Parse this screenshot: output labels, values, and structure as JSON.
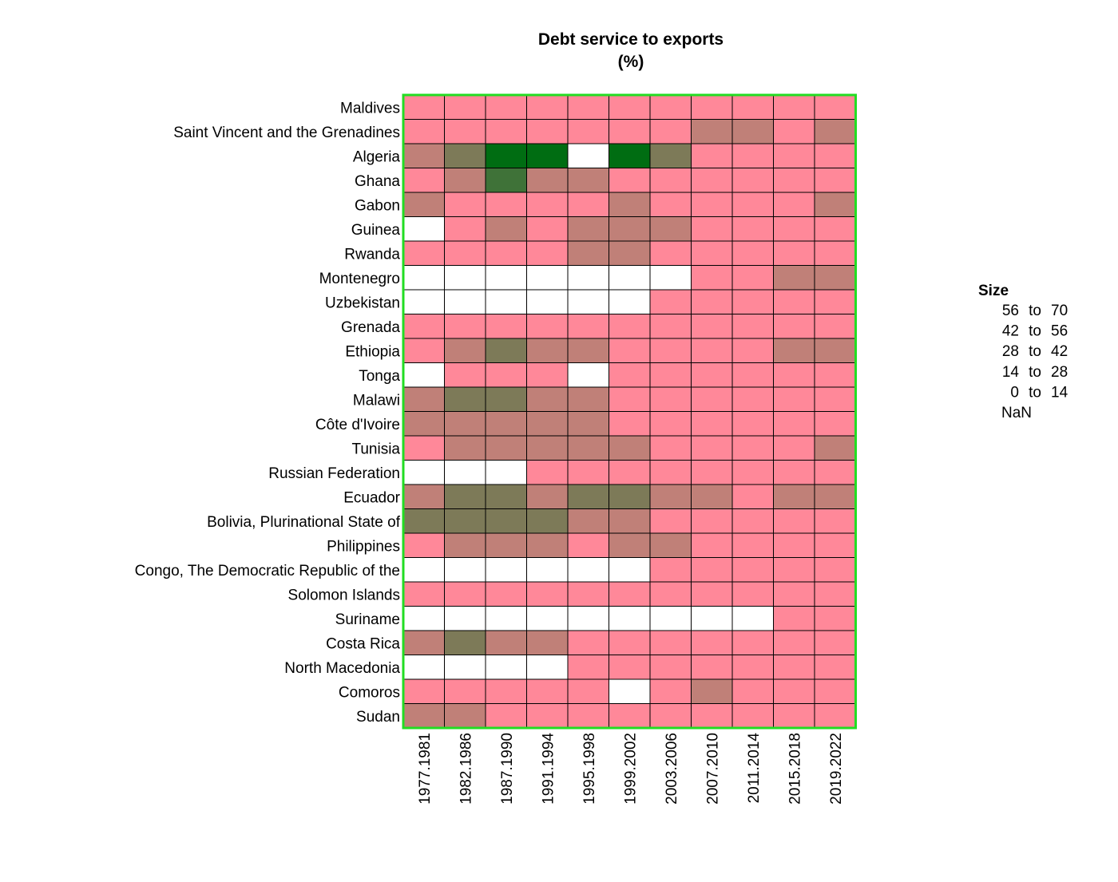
{
  "chart_data": {
    "type": "heatmap",
    "title": "Debt service to exports",
    "subtitle": "(%)",
    "columns": [
      "1977.1981",
      "1982.1986",
      "1987.1990",
      "1991.1994",
      "1995.1998",
      "1999.2002",
      "2003.2006",
      "2007.2010",
      "2011.2014",
      "2015.2018",
      "2019.2022"
    ],
    "rows": [
      "Maldives",
      "Saint Vincent and the Grenadines",
      "Algeria",
      "Ghana",
      "Gabon",
      "Guinea",
      "Rwanda",
      "Montenegro",
      "Uzbekistan",
      "Grenada",
      "Ethiopia",
      "Tonga",
      "Malawi",
      "Côte d'Ivoire",
      "Tunisia",
      "Russian Federation",
      "Ecuador",
      "Bolivia, Plurinational State of",
      "Philippines",
      "Congo, The Democratic Republic of the",
      "Solomon Islands",
      "Suriname",
      "Costa Rica",
      "North Macedonia",
      "Comoros",
      "Sudan"
    ],
    "bins": [
      "0 to 14",
      "14 to 28",
      "28 to 42",
      "42 to 56",
      "56 to 70",
      "NaN"
    ],
    "cells": [
      [
        "0 to 14",
        "0 to 14",
        "0 to 14",
        "0 to 14",
        "0 to 14",
        "0 to 14",
        "0 to 14",
        "0 to 14",
        "0 to 14",
        "0 to 14",
        "0 to 14"
      ],
      [
        "0 to 14",
        "0 to 14",
        "0 to 14",
        "0 to 14",
        "0 to 14",
        "0 to 14",
        "0 to 14",
        "14 to 28",
        "14 to 28",
        "0 to 14",
        "14 to 28"
      ],
      [
        "14 to 28",
        "28 to 42",
        "56 to 70",
        "56 to 70",
        "NaN",
        "56 to 70",
        "28 to 42",
        "0 to 14",
        "0 to 14",
        "0 to 14",
        "0 to 14"
      ],
      [
        "0 to 14",
        "14 to 28",
        "42 to 56",
        "14 to 28",
        "14 to 28",
        "0 to 14",
        "0 to 14",
        "0 to 14",
        "0 to 14",
        "0 to 14",
        "0 to 14"
      ],
      [
        "14 to 28",
        "0 to 14",
        "0 to 14",
        "0 to 14",
        "0 to 14",
        "14 to 28",
        "0 to 14",
        "0 to 14",
        "0 to 14",
        "0 to 14",
        "14 to 28"
      ],
      [
        "NaN",
        "0 to 14",
        "14 to 28",
        "0 to 14",
        "14 to 28",
        "14 to 28",
        "14 to 28",
        "0 to 14",
        "0 to 14",
        "0 to 14",
        "0 to 14"
      ],
      [
        "0 to 14",
        "0 to 14",
        "0 to 14",
        "0 to 14",
        "14 to 28",
        "14 to 28",
        "0 to 14",
        "0 to 14",
        "0 to 14",
        "0 to 14",
        "0 to 14"
      ],
      [
        "NaN",
        "NaN",
        "NaN",
        "NaN",
        "NaN",
        "NaN",
        "NaN",
        "0 to 14",
        "0 to 14",
        "14 to 28",
        "14 to 28"
      ],
      [
        "NaN",
        "NaN",
        "NaN",
        "NaN",
        "NaN",
        "NaN",
        "0 to 14",
        "0 to 14",
        "0 to 14",
        "0 to 14",
        "0 to 14"
      ],
      [
        "0 to 14",
        "0 to 14",
        "0 to 14",
        "0 to 14",
        "0 to 14",
        "0 to 14",
        "0 to 14",
        "0 to 14",
        "0 to 14",
        "0 to 14",
        "0 to 14"
      ],
      [
        "0 to 14",
        "14 to 28",
        "28 to 42",
        "14 to 28",
        "14 to 28",
        "0 to 14",
        "0 to 14",
        "0 to 14",
        "0 to 14",
        "14 to 28",
        "14 to 28"
      ],
      [
        "NaN",
        "0 to 14",
        "0 to 14",
        "0 to 14",
        "NaN",
        "0 to 14",
        "0 to 14",
        "0 to 14",
        "0 to 14",
        "0 to 14",
        "0 to 14"
      ],
      [
        "14 to 28",
        "28 to 42",
        "28 to 42",
        "14 to 28",
        "14 to 28",
        "0 to 14",
        "0 to 14",
        "0 to 14",
        "0 to 14",
        "0 to 14",
        "0 to 14"
      ],
      [
        "14 to 28",
        "14 to 28",
        "14 to 28",
        "14 to 28",
        "14 to 28",
        "0 to 14",
        "0 to 14",
        "0 to 14",
        "0 to 14",
        "0 to 14",
        "0 to 14"
      ],
      [
        "0 to 14",
        "14 to 28",
        "14 to 28",
        "14 to 28",
        "14 to 28",
        "14 to 28",
        "0 to 14",
        "0 to 14",
        "0 to 14",
        "0 to 14",
        "14 to 28"
      ],
      [
        "NaN",
        "NaN",
        "NaN",
        "0 to 14",
        "0 to 14",
        "0 to 14",
        "0 to 14",
        "0 to 14",
        "0 to 14",
        "0 to 14",
        "0 to 14"
      ],
      [
        "14 to 28",
        "28 to 42",
        "28 to 42",
        "14 to 28",
        "28 to 42",
        "28 to 42",
        "14 to 28",
        "14 to 28",
        "0 to 14",
        "14 to 28",
        "14 to 28"
      ],
      [
        "28 to 42",
        "28 to 42",
        "28 to 42",
        "28 to 42",
        "14 to 28",
        "14 to 28",
        "0 to 14",
        "0 to 14",
        "0 to 14",
        "0 to 14",
        "0 to 14"
      ],
      [
        "0 to 14",
        "14 to 28",
        "14 to 28",
        "14 to 28",
        "0 to 14",
        "14 to 28",
        "14 to 28",
        "0 to 14",
        "0 to 14",
        "0 to 14",
        "0 to 14"
      ],
      [
        "NaN",
        "NaN",
        "NaN",
        "NaN",
        "NaN",
        "NaN",
        "0 to 14",
        "0 to 14",
        "0 to 14",
        "0 to 14",
        "0 to 14"
      ],
      [
        "0 to 14",
        "0 to 14",
        "0 to 14",
        "0 to 14",
        "0 to 14",
        "0 to 14",
        "0 to 14",
        "0 to 14",
        "0 to 14",
        "0 to 14",
        "0 to 14"
      ],
      [
        "NaN",
        "NaN",
        "NaN",
        "NaN",
        "NaN",
        "NaN",
        "NaN",
        "NaN",
        "NaN",
        "0 to 14",
        "0 to 14"
      ],
      [
        "14 to 28",
        "28 to 42",
        "14 to 28",
        "14 to 28",
        "0 to 14",
        "0 to 14",
        "0 to 14",
        "0 to 14",
        "0 to 14",
        "0 to 14",
        "0 to 14"
      ],
      [
        "NaN",
        "NaN",
        "NaN",
        "NaN",
        "0 to 14",
        "0 to 14",
        "0 to 14",
        "0 to 14",
        "0 to 14",
        "0 to 14",
        "0 to 14"
      ],
      [
        "0 to 14",
        "0 to 14",
        "0 to 14",
        "0 to 14",
        "0 to 14",
        "NaN",
        "0 to 14",
        "14 to 28",
        "0 to 14",
        "0 to 14",
        "0 to 14"
      ],
      [
        "14 to 28",
        "14 to 28",
        "0 to 14",
        "0 to 14",
        "0 to 14",
        "0 to 14",
        "0 to 14",
        "0 to 14",
        "0 to 14",
        "0 to 14",
        "0 to 14"
      ]
    ],
    "colors": {
      "0 to 14": "#ff8899",
      "14 to 28": "#c08078",
      "28 to 42": "#7d7a58",
      "42 to 56": "#3f7238",
      "56 to 70": "#006d12",
      "NaN": "#ffffff",
      "frame": "#22dd22",
      "cell_border": "#000000"
    },
    "legend": {
      "title": "Size",
      "entries": [
        {
          "lo": "56",
          "hi": "70"
        },
        {
          "lo": "42",
          "hi": "56"
        },
        {
          "lo": "28",
          "hi": "42"
        },
        {
          "lo": "14",
          "hi": "28"
        },
        {
          "lo": "0",
          "hi": "14"
        }
      ],
      "connector": "to",
      "nan_label": "NaN",
      "placement": "right"
    }
  }
}
